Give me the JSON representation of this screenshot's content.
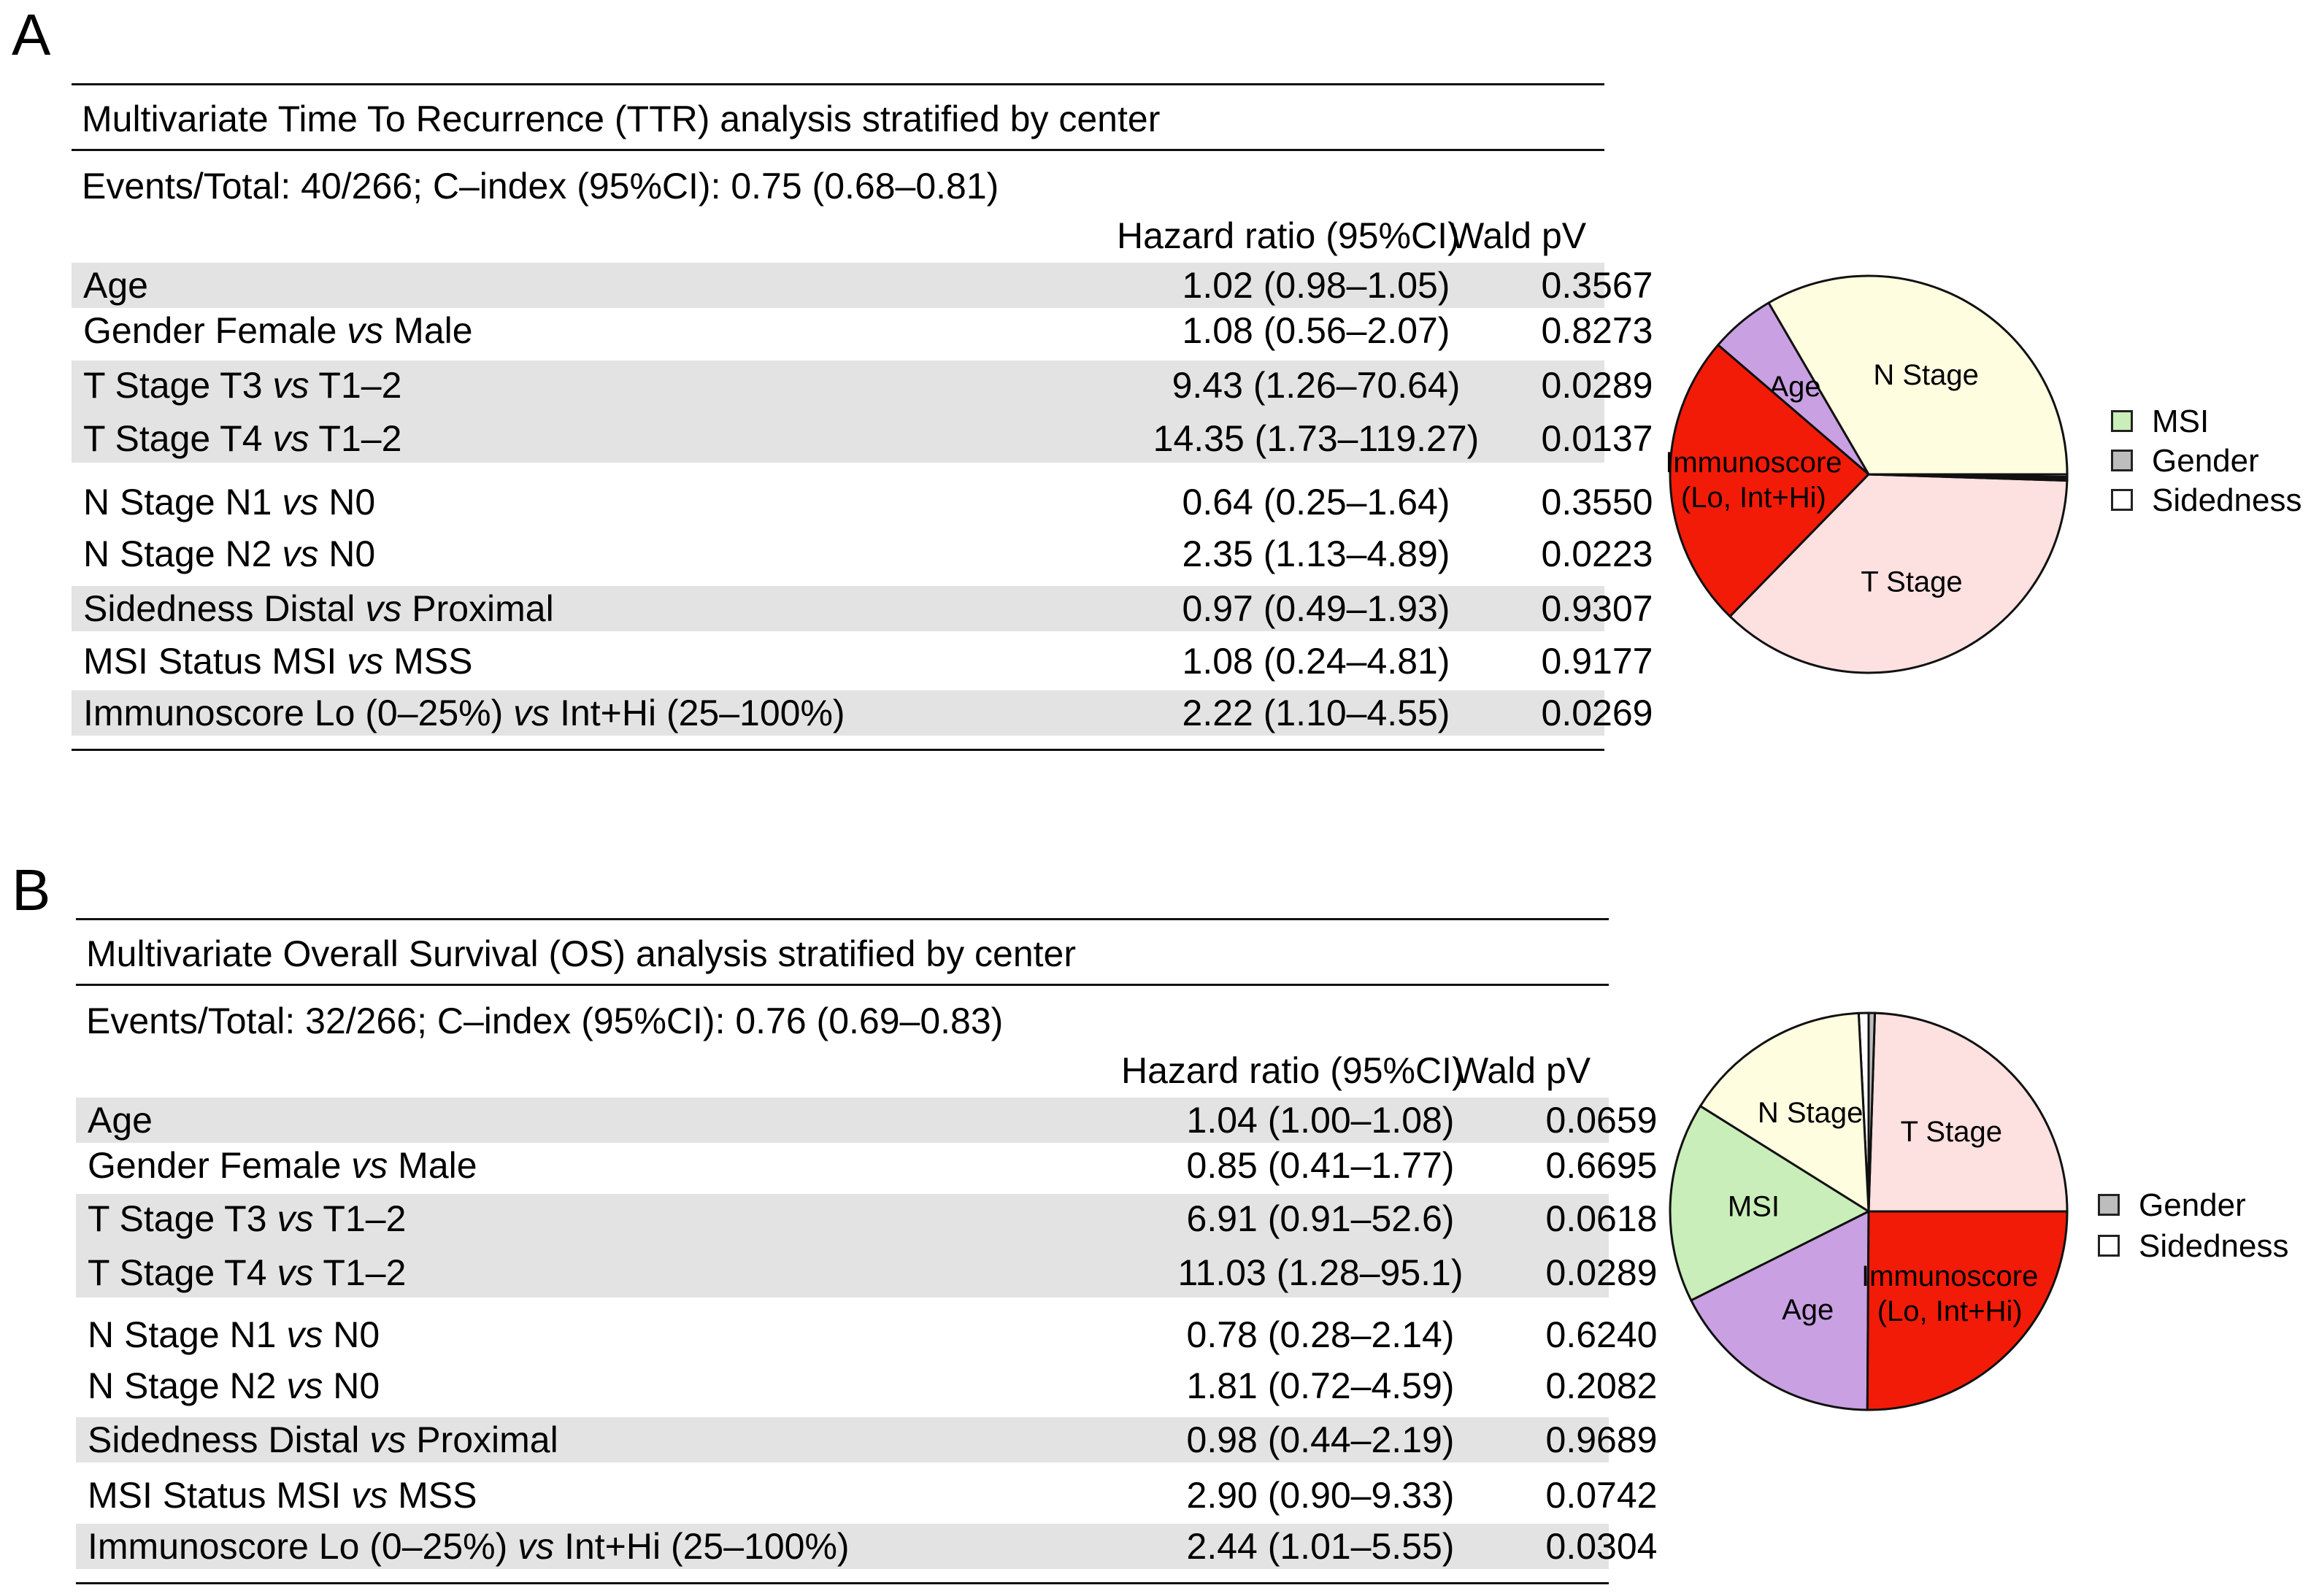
{
  "panels": [
    {
      "letter": "A",
      "title": "Multivariate Time To Recurrence (TTR) analysis stratified by center",
      "events": "Events/Total: 40/266; C–index (95%CI): 0.75 (0.68–0.81)",
      "col_hr": "Hazard ratio (95%CI)",
      "col_pv": "Wald pV",
      "rows": [
        {
          "pre": "Age",
          "vs": "",
          "post": "",
          "hr": "1.02 (0.98–1.05)",
          "pv": "0.3567"
        },
        {
          "pre": "Gender Female ",
          "vs": "vs",
          "post": " Male",
          "hr": "1.08 (0.56–2.07)",
          "pv": "0.8273"
        },
        {
          "pre": "T Stage T3 ",
          "vs": "vs",
          "post": " T1–2",
          "hr": "9.43 (1.26–70.64)",
          "pv": "0.0289"
        },
        {
          "pre": "T Stage T4 ",
          "vs": "vs",
          "post": " T1–2",
          "hr": "14.35 (1.73–119.27)",
          "pv": "0.0137"
        },
        {
          "pre": "N Stage N1 ",
          "vs": "vs",
          "post": " N0",
          "hr": "0.64 (0.25–1.64)",
          "pv": "0.3550"
        },
        {
          "pre": "N Stage N2 ",
          "vs": "vs",
          "post": " N0",
          "hr": "2.35 (1.13–4.89)",
          "pv": "0.0223"
        },
        {
          "pre": "Sidedness Distal ",
          "vs": "vs",
          "post": " Proximal",
          "hr": "0.97 (0.49–1.93)",
          "pv": "0.9307"
        },
        {
          "pre": "MSI Status MSI ",
          "vs": "vs",
          "post": " MSS",
          "hr": "1.08 (0.24–4.81)",
          "pv": "0.9177"
        },
        {
          "pre": "Immunoscore Lo (0–25%) ",
          "vs": "vs",
          "post": " Int+Hi (25–100%)",
          "hr": "2.22 (1.10–4.55)",
          "pv": "0.0269"
        }
      ],
      "legend": [
        "MSI",
        "Gender",
        "Sidedness"
      ]
    },
    {
      "letter": "B",
      "title": "Multivariate Overall Survival (OS) analysis stratified by center",
      "events": "Events/Total: 32/266; C–index (95%CI): 0.76 (0.69–0.83)",
      "col_hr": "Hazard ratio (95%CI)",
      "col_pv": "Wald pV",
      "rows": [
        {
          "pre": "Age",
          "vs": "",
          "post": "",
          "hr": "1.04 (1.00–1.08)",
          "pv": "0.0659"
        },
        {
          "pre": "Gender Female ",
          "vs": "vs",
          "post": " Male",
          "hr": "0.85 (0.41–1.77)",
          "pv": "0.6695"
        },
        {
          "pre": "T Stage T3 ",
          "vs": "vs",
          "post": " T1–2",
          "hr": "6.91 (0.91–52.6)",
          "pv": "0.0618"
        },
        {
          "pre": "T Stage T4 ",
          "vs": "vs",
          "post": " T1–2",
          "hr": "11.03 (1.28–95.1)",
          "pv": "0.0289"
        },
        {
          "pre": "N Stage N1 ",
          "vs": "vs",
          "post": " N0",
          "hr": "0.78 (0.28–2.14)",
          "pv": "0.6240"
        },
        {
          "pre": "N Stage N2 ",
          "vs": "vs",
          "post": " N0",
          "hr": "1.81 (0.72–4.59)",
          "pv": "0.2082"
        },
        {
          "pre": "Sidedness Distal ",
          "vs": "vs",
          "post": " Proximal",
          "hr": "0.98 (0.44–2.19)",
          "pv": "0.9689"
        },
        {
          "pre": "MSI Status MSI ",
          "vs": "vs",
          "post": " MSS",
          "hr": "2.90 (0.90–9.33)",
          "pv": "0.0742"
        },
        {
          "pre": "Immunoscore Lo (0–25%) ",
          "vs": "vs",
          "post": " Int+Hi (25–100%)",
          "hr": "2.44 (1.01–5.55)",
          "pv": "0.0304"
        }
      ],
      "legend": [
        "Gender",
        "Sidedness"
      ]
    }
  ],
  "chart_data": [
    {
      "type": "pie",
      "title": "",
      "labels": [
        "N Stage",
        "Age",
        "Immunoscore (Lo, Int+Hi)",
        "T Stage",
        "MSI",
        "Gender",
        "Sidedness"
      ],
      "values": [
        33.4,
        5.3,
        24.0,
        36.8,
        0.15,
        0.15,
        0.2
      ],
      "colors": [
        "#fffde0",
        "#c9a0e2",
        "#f21b08",
        "#fde0e0",
        "#c9eeb9",
        "#bdbdbd",
        "#ffffff"
      ],
      "slice_labels": [
        "N Stage",
        "Age",
        "Immunoscore\n(Lo, Int+Hi)",
        "T Stage",
        "",
        "",
        ""
      ],
      "legend": [
        "MSI",
        "Gender",
        "Sidedness"
      ]
    },
    {
      "type": "pie",
      "title": "",
      "labels": [
        "T Stage",
        "Gender",
        "Sidedness",
        "N Stage",
        "MSI",
        "Age",
        "Immunoscore (Lo, Int+Hi)"
      ],
      "values": [
        24.5,
        0.5,
        0.8,
        15.3,
        16.3,
        17.5,
        25.1
      ],
      "colors": [
        "#fde0e0",
        "#bdbdbd",
        "#ffffff",
        "#fffde0",
        "#c9eeb9",
        "#c9a0e2",
        "#f21b08"
      ],
      "slice_labels": [
        "T Stage",
        "",
        "",
        "N Stage",
        "MSI",
        "Age",
        "Immunoscore\n(Lo, Int+Hi)"
      ],
      "legend": [
        "Gender",
        "Sidedness"
      ]
    }
  ]
}
